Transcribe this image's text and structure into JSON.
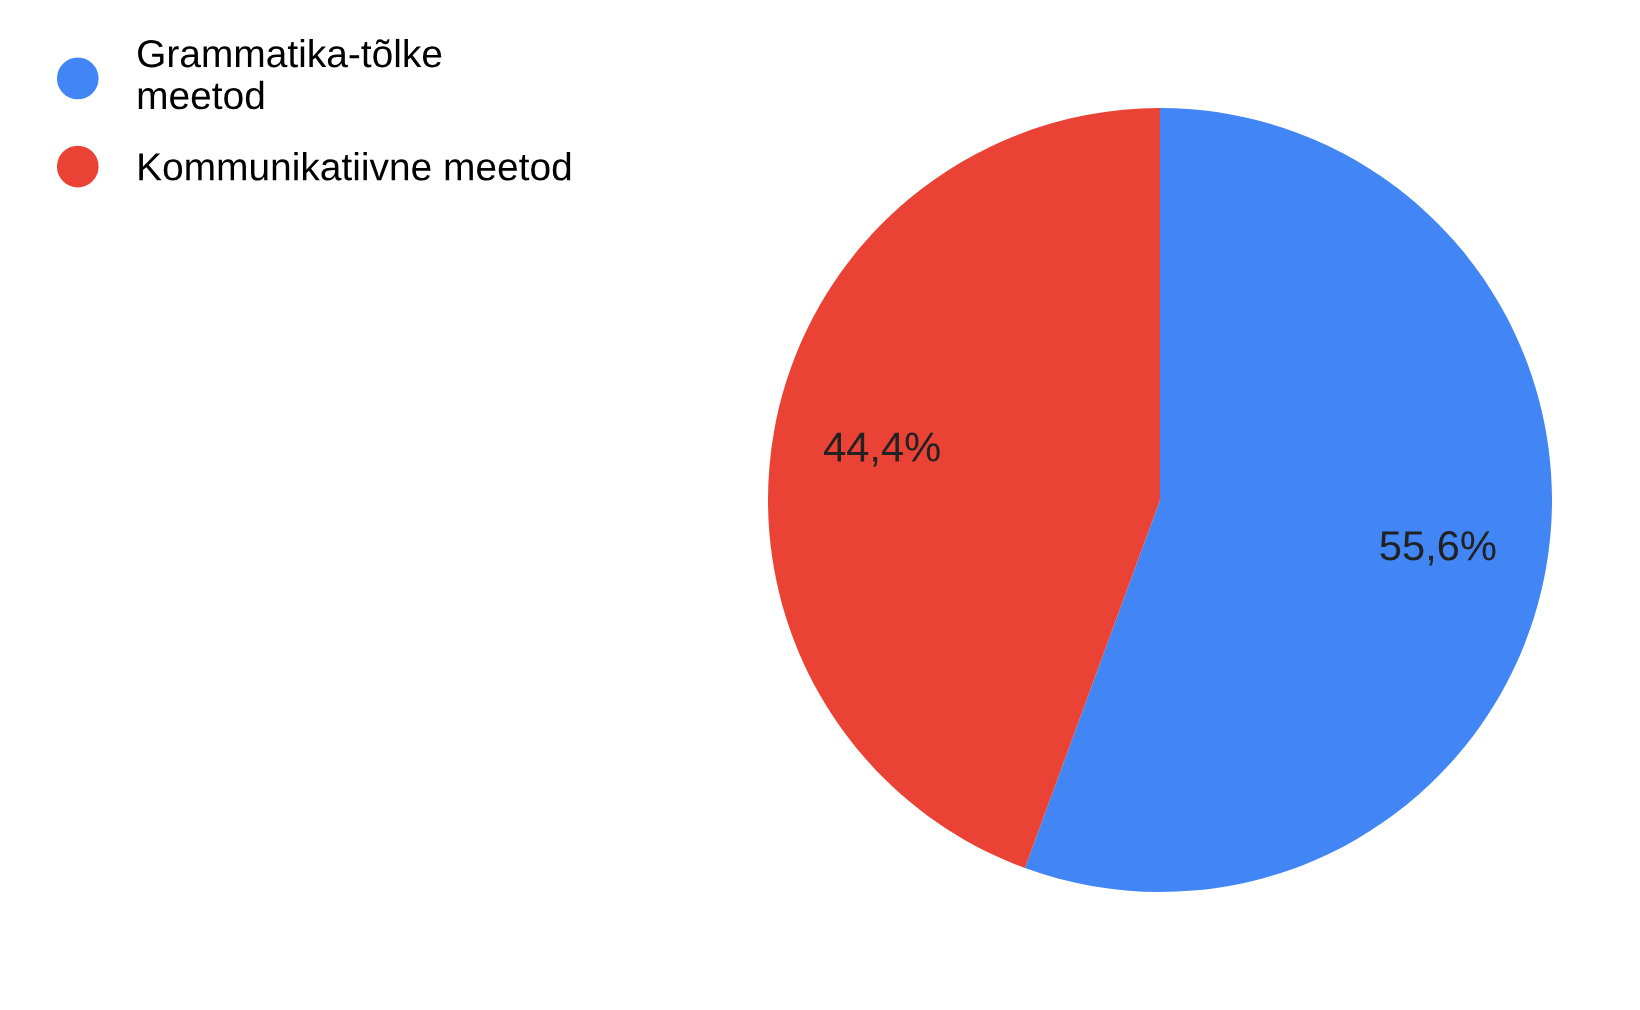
{
  "chart_data": {
    "type": "pie",
    "categories": [
      "Grammatika-tõlke\nmeetod",
      "Kommunikatiivne meetod"
    ],
    "values": [
      55.6,
      44.4
    ],
    "colors": [
      "#4285f4",
      "#ea4335"
    ],
    "value_labels": [
      "55,6%",
      "44,4%"
    ],
    "legend": "top left"
  }
}
